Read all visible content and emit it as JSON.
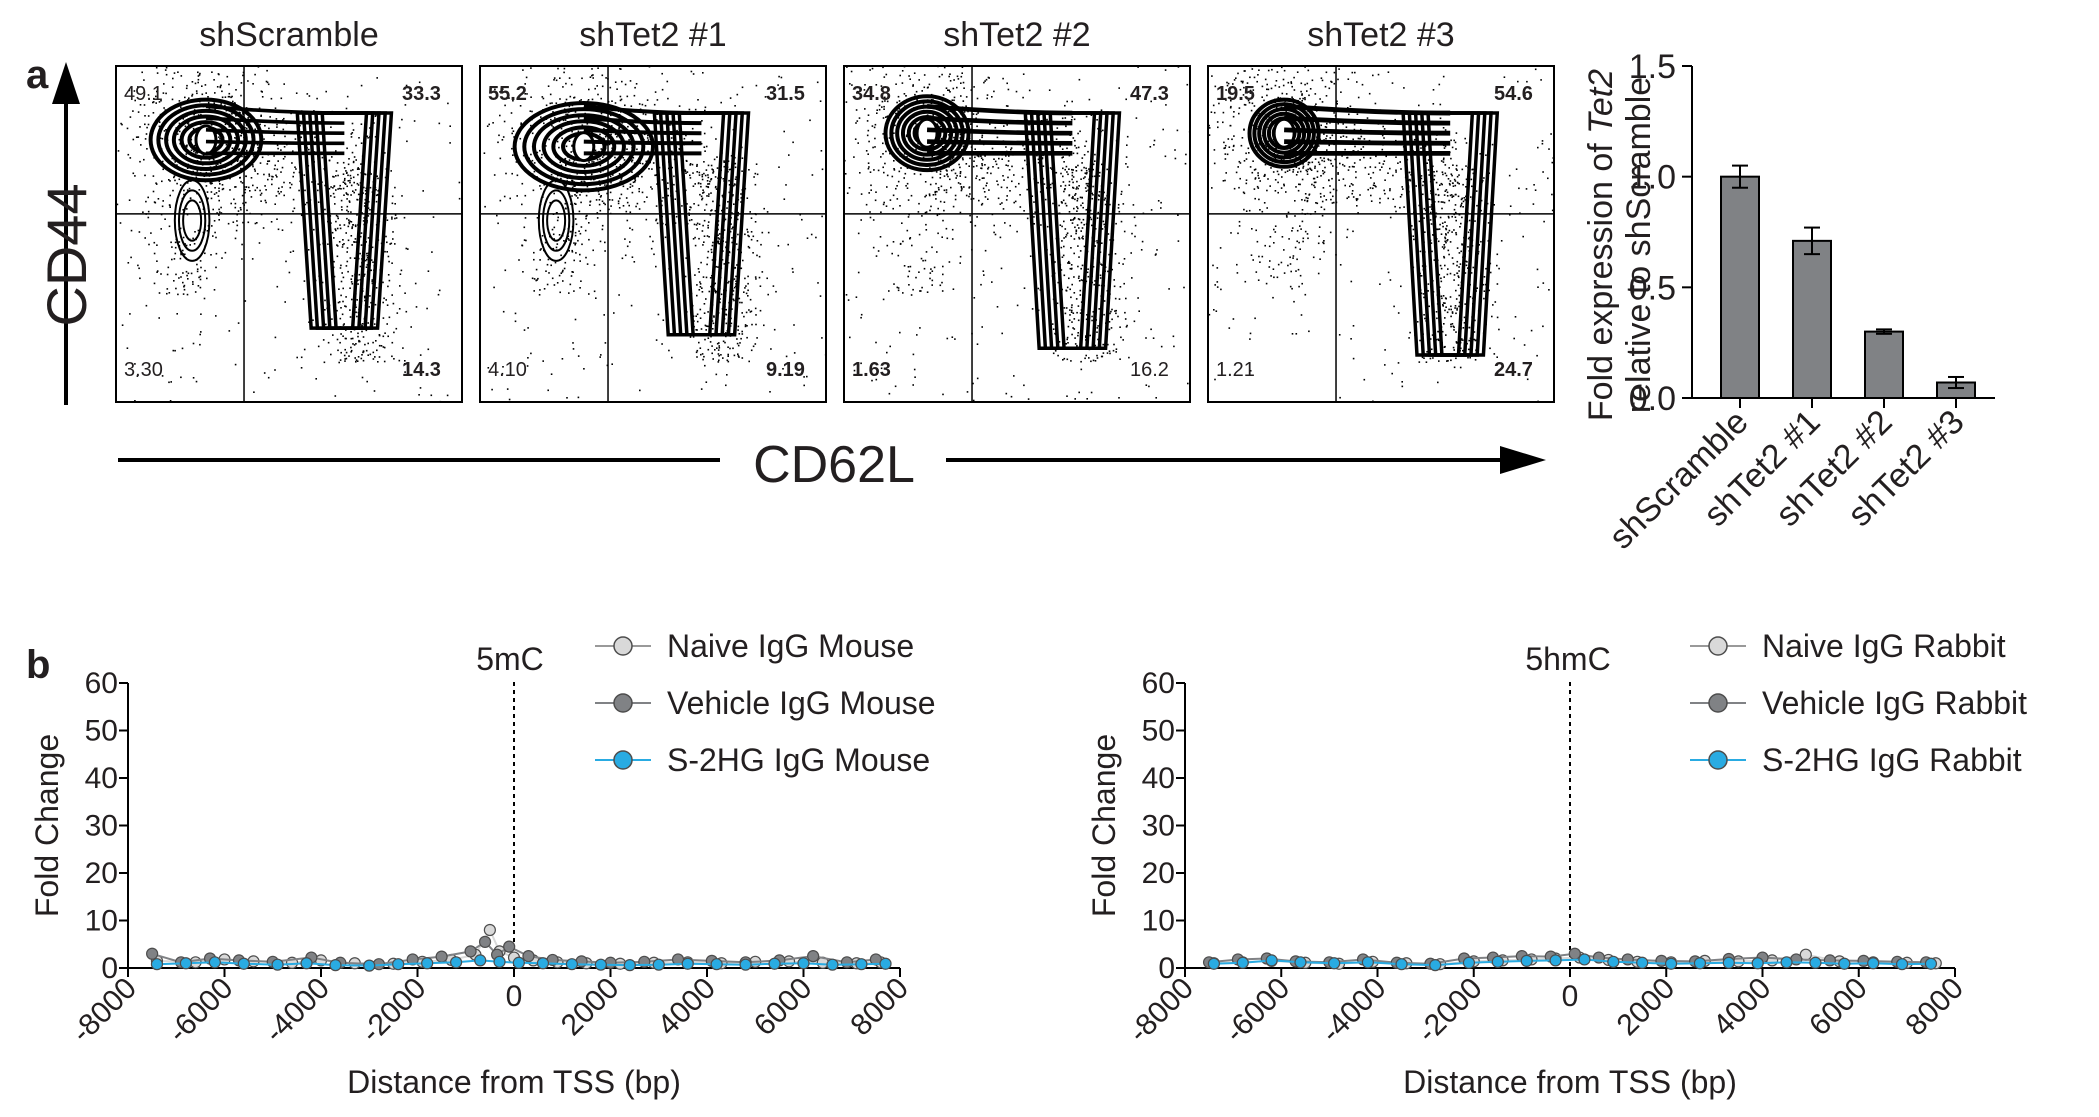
{
  "panels": {
    "a": {
      "label": "a"
    },
    "b": {
      "label": "b"
    }
  },
  "flow": {
    "x_axis_label": "CD62L",
    "y_axis_label": "CD44",
    "plots": [
      {
        "title": "shScramble",
        "q_upper_left": "49.1",
        "q_upper_right": "33.3",
        "q_lower_left": "3.30",
        "q_lower_right": "14.3",
        "bold": {
          "ul": false,
          "ur": true,
          "ll": false,
          "lr": true
        }
      },
      {
        "title": "shTet2 #1",
        "q_upper_left": "55.2",
        "q_upper_right": "31.5",
        "q_lower_left": "4.10",
        "q_lower_right": "9.19",
        "bold": {
          "ul": true,
          "ur": true,
          "ll": false,
          "lr": true
        }
      },
      {
        "title": "shTet2 #2",
        "q_upper_left": "34.8",
        "q_upper_right": "47.3",
        "q_lower_left": "1.63",
        "q_lower_right": "16.2",
        "bold": {
          "ul": true,
          "ur": true,
          "ll": true,
          "lr": false
        }
      },
      {
        "title": "shTet2 #3",
        "q_upper_left": "19.5",
        "q_upper_right": "54.6",
        "q_lower_left": "1.21",
        "q_lower_right": "24.7",
        "bold": {
          "ul": true,
          "ur": true,
          "ll": false,
          "lr": true
        }
      }
    ]
  },
  "chart_data": [
    {
      "type": "bar",
      "ylabel_line1_prefix": "Fold expression of ",
      "ylabel_line1_italic": "Tet2",
      "ylabel_line2": "relative to shScramble",
      "categories": [
        "shScramble",
        "shTet2 #1",
        "shTet2 #2",
        "shTet2 #3"
      ],
      "values": [
        1.0,
        0.71,
        0.3,
        0.07
      ],
      "errors": [
        0.05,
        0.06,
        0.01,
        0.025
      ],
      "ylim": [
        0,
        1.5
      ],
      "yticks": [
        "0.0",
        "0.5",
        "1.0",
        "1.5"
      ],
      "bar_color": "#808285"
    },
    {
      "type": "line",
      "annotation": "5mC",
      "xlabel": "Distance from TSS (bp)",
      "ylabel": "Fold Change",
      "xlim": [
        -8000,
        8000
      ],
      "ylim": [
        0,
        60
      ],
      "xticks": [
        "-8000",
        "-6000",
        "-4000",
        "-2000",
        "0",
        "2000",
        "4000",
        "6000",
        "8000"
      ],
      "yticks": [
        "0",
        "10",
        "20",
        "30",
        "40",
        "50",
        "60"
      ],
      "series": [
        {
          "name": "Naive IgG Mouse",
          "color": "#d9d9d9",
          "x": [
            -7400,
            -6600,
            -6000,
            -5400,
            -4600,
            -4000,
            -3300,
            -2500,
            -1900,
            -1300,
            -800,
            -500,
            -300,
            0,
            400,
            900,
            1500,
            2200,
            2900,
            3600,
            4300,
            5000,
            5700,
            6400,
            7100,
            7600
          ],
          "y": [
            1.5,
            1.2,
            1.8,
            1.4,
            1.1,
            1.6,
            1.0,
            0.9,
            1.3,
            1.7,
            2.8,
            8.0,
            3.5,
            2.2,
            1.6,
            1.2,
            1.0,
            0.9,
            1.1,
            1.2,
            1.0,
            1.3,
            1.4,
            1.1,
            1.0,
            1.2
          ]
        },
        {
          "name": "Vehicle IgG Mouse",
          "color": "#808285",
          "x": [
            -7500,
            -6900,
            -6300,
            -5700,
            -5000,
            -4200,
            -3600,
            -2800,
            -2100,
            -1500,
            -900,
            -600,
            -350,
            -100,
            300,
            800,
            1400,
            2000,
            2700,
            3400,
            4100,
            4800,
            5500,
            6200,
            6900,
            7500
          ],
          "y": [
            3.0,
            1.2,
            2.0,
            1.6,
            1.3,
            2.2,
            1.1,
            0.8,
            1.8,
            2.4,
            3.5,
            5.5,
            2.8,
            4.5,
            2.5,
            1.7,
            1.4,
            1.1,
            1.3,
            1.8,
            1.5,
            1.2,
            1.6,
            2.5,
            1.2,
            1.8
          ]
        },
        {
          "name": "S-2HG IgG Mouse",
          "color": "#29abe2",
          "x": [
            -7400,
            -6800,
            -6200,
            -5600,
            -4900,
            -4300,
            -3700,
            -3000,
            -2400,
            -1800,
            -1200,
            -700,
            -300,
            100,
            600,
            1200,
            1800,
            2400,
            3000,
            3600,
            4200,
            4800,
            5400,
            6000,
            6600,
            7200,
            7700
          ],
          "y": [
            0.8,
            1.0,
            1.2,
            0.9,
            0.7,
            1.0,
            0.6,
            0.5,
            0.8,
            1.0,
            1.2,
            1.6,
            1.3,
            1.1,
            1.0,
            0.8,
            0.7,
            0.6,
            0.7,
            0.9,
            0.8,
            0.7,
            0.9,
            1.0,
            0.7,
            0.8,
            0.9
          ]
        }
      ]
    },
    {
      "type": "line",
      "annotation": "5hmC",
      "xlabel": "Distance from TSS (bp)",
      "ylabel": "Fold Change",
      "xlim": [
        -8000,
        8000
      ],
      "ylim": [
        0,
        60
      ],
      "xticks": [
        "-8000",
        "-6000",
        "-4000",
        "-2000",
        "0",
        "2000",
        "4000",
        "6000",
        "8000"
      ],
      "yticks": [
        "0",
        "10",
        "20",
        "30",
        "40",
        "50",
        "60"
      ],
      "series": [
        {
          "name": "Naive IgG Rabbit",
          "color": "#d9d9d9",
          "x": [
            -7400,
            -6800,
            -6200,
            -5500,
            -4800,
            -4100,
            -3400,
            -2700,
            -2000,
            -1400,
            -800,
            -300,
            200,
            800,
            1400,
            2100,
            2800,
            3500,
            4200,
            4900,
            5600,
            6300,
            7000,
            7600
          ],
          "y": [
            1.0,
            1.2,
            1.5,
            1.1,
            0.9,
            1.3,
            1.0,
            0.8,
            1.4,
            1.6,
            1.8,
            2.0,
            2.2,
            1.7,
            1.3,
            1.2,
            1.5,
            1.4,
            1.6,
            2.8,
            1.4,
            1.2,
            1.1,
            1.0
          ]
        },
        {
          "name": "Vehicle IgG Rabbit",
          "color": "#808285",
          "x": [
            -7500,
            -6900,
            -6300,
            -5700,
            -5000,
            -4300,
            -3600,
            -2900,
            -2200,
            -1600,
            -1000,
            -400,
            100,
            600,
            1200,
            1900,
            2600,
            3300,
            4000,
            4700,
            5400,
            6100,
            6800,
            7400
          ],
          "y": [
            1.2,
            1.8,
            2.0,
            1.4,
            1.2,
            1.8,
            1.1,
            0.9,
            2.0,
            2.2,
            2.5,
            2.4,
            3.0,
            2.2,
            1.8,
            1.5,
            1.4,
            1.9,
            2.2,
            1.8,
            1.6,
            1.5,
            1.3,
            1.2
          ]
        },
        {
          "name": "S-2HG IgG Rabbit",
          "color": "#29abe2",
          "x": [
            -7400,
            -6800,
            -6200,
            -5600,
            -4900,
            -4200,
            -3500,
            -2800,
            -2100,
            -1500,
            -900,
            -300,
            300,
            900,
            1500,
            2100,
            2700,
            3300,
            3900,
            4500,
            5100,
            5700,
            6300,
            6900,
            7500
          ],
          "y": [
            0.9,
            1.1,
            1.6,
            1.2,
            1.0,
            1.2,
            0.8,
            0.6,
            1.1,
            1.3,
            1.5,
            1.6,
            1.8,
            1.3,
            1.1,
            0.9,
            1.0,
            1.1,
            1.0,
            1.2,
            1.1,
            0.9,
            1.0,
            0.8,
            0.9
          ]
        }
      ]
    }
  ]
}
